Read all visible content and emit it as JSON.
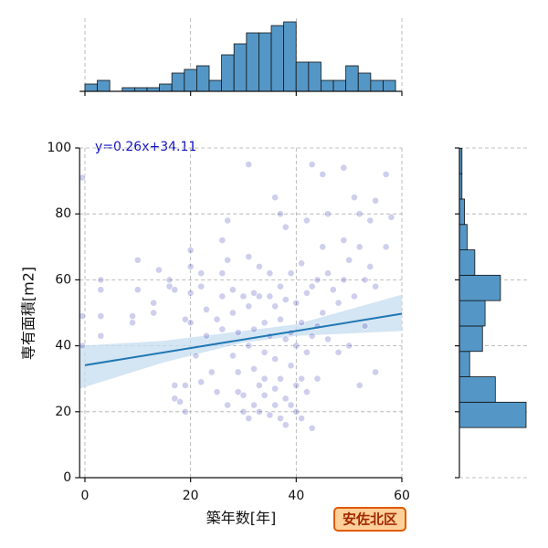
{
  "chart_data": [
    {
      "type": "scatter",
      "x_label": "築年数[年]",
      "y_label": "専有面積[m2]",
      "annotation": "y=0.26x+34.11",
      "badge": "安佐北区",
      "xlim": [
        -1,
        60
      ],
      "ylim": [
        0,
        100
      ],
      "xticks": [
        0,
        20,
        40,
        60
      ],
      "yticks": [
        0,
        20,
        40,
        60,
        80,
        100
      ],
      "grid": true,
      "color": "#3a3ab8",
      "line_color": "#1f77b4",
      "band_color": "#c6dcef",
      "x": [
        -0.5,
        -0.5,
        -0.5,
        3,
        3,
        3,
        3,
        9,
        9,
        10,
        10,
        13,
        13,
        14,
        16,
        16,
        17,
        17,
        17,
        18,
        19,
        19,
        19,
        20,
        20,
        20,
        20,
        21,
        22,
        22,
        22,
        23,
        23,
        24,
        25,
        25,
        26,
        26,
        26,
        26,
        27,
        27,
        27,
        28,
        28,
        28,
        29,
        29,
        29,
        30,
        30,
        30,
        31,
        31,
        31,
        31,
        31,
        32,
        32,
        32,
        32,
        33,
        33,
        33,
        33,
        34,
        34,
        34,
        34,
        35,
        35,
        35,
        35,
        36,
        36,
        36,
        36,
        36,
        37,
        37,
        37,
        37,
        37,
        38,
        38,
        38,
        38,
        38,
        39,
        39,
        39,
        39,
        40,
        40,
        40,
        40,
        41,
        41,
        41,
        41,
        42,
        42,
        42,
        42,
        43,
        43,
        43,
        43,
        44,
        44,
        44,
        45,
        45,
        45,
        46,
        46,
        46,
        47,
        48,
        48,
        49,
        49,
        49,
        50,
        50,
        51,
        51,
        52,
        52,
        52,
        53,
        53,
        54,
        54,
        55,
        55,
        55,
        57,
        57,
        58
      ],
      "y": [
        91,
        49,
        40,
        60,
        57,
        49,
        43,
        47,
        49,
        66,
        57,
        53,
        50,
        63,
        60,
        58,
        57,
        28,
        24,
        23,
        28,
        48,
        20,
        69,
        64,
        56,
        47,
        37,
        29,
        62,
        58,
        51,
        43,
        32,
        26,
        48,
        72,
        62,
        55,
        45,
        78,
        66,
        22,
        57,
        50,
        37,
        26,
        32,
        44,
        55,
        25,
        20,
        95,
        67,
        52,
        40,
        18,
        56,
        45,
        33,
        22,
        64,
        55,
        28,
        20,
        47,
        38,
        30,
        25,
        62,
        55,
        43,
        19,
        85,
        52,
        36,
        27,
        22,
        80,
        58,
        48,
        30,
        18,
        76,
        54,
        42,
        24,
        16,
        62,
        44,
        34,
        22,
        53,
        40,
        28,
        20,
        65,
        47,
        30,
        18,
        78,
        56,
        38,
        26,
        95,
        58,
        43,
        15,
        60,
        46,
        30,
        92,
        70,
        50,
        80,
        62,
        42,
        57,
        53,
        38,
        94,
        72,
        60,
        66,
        40,
        85,
        55,
        80,
        70,
        28,
        60,
        46,
        78,
        64,
        84,
        58,
        32,
        92,
        70,
        79
      ],
      "regression_x": [
        0,
        60
      ],
      "regression_y": [
        34.11,
        49.71
      ],
      "ci": {
        "x": [
          -1,
          15,
          30,
          40,
          60
        ],
        "lower": [
          27,
          35,
          41,
          43,
          44.5
        ],
        "upper": [
          40,
          41.5,
          44.5,
          46.5,
          55.5
        ]
      }
    },
    {
      "type": "histogram",
      "orientation": "vertical",
      "color": "#5497c6",
      "bins": [
        0,
        2.35,
        4.7,
        7.06,
        9.41,
        11.76,
        14.11,
        16.46,
        18.82,
        21.17,
        23.52,
        25.87,
        28.22,
        30.58,
        32.93,
        35.28,
        37.63,
        39.98,
        42.34,
        44.69,
        47.04,
        49.39,
        51.74,
        54.1,
        56.45,
        58.8
      ],
      "counts": [
        2,
        3,
        0,
        1,
        1,
        1,
        2,
        5,
        6,
        7,
        3,
        10,
        13,
        16,
        16,
        18,
        19,
        8,
        8,
        3,
        3,
        7,
        5,
        3,
        3
      ]
    },
    {
      "type": "histogram",
      "orientation": "horizontal",
      "color": "#5497c6",
      "bins": [
        15.2,
        22.9,
        30.6,
        38.3,
        46,
        53.7,
        61.4,
        69.1,
        76.8,
        84.5,
        92.2,
        99.9
      ],
      "counts": [
        26,
        14,
        4,
        9,
        10,
        16,
        6,
        3,
        2,
        1,
        1
      ]
    }
  ]
}
